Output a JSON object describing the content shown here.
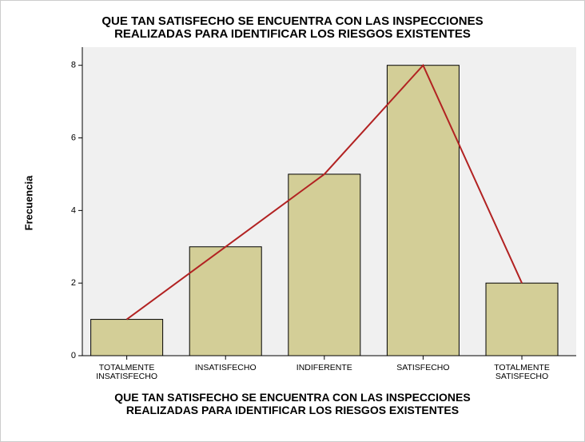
{
  "chart_data": {
    "type": "bar",
    "title": "QUE TAN SATISFECHO SE ENCUENTRA CON LAS INSPECCIONES\nREALIZADAS PARA IDENTIFICAR LOS RIESGOS EXISTENTES",
    "x_label": "QUE TAN SATISFECHO SE ENCUENTRA CON LAS INSPECCIONES\nREALIZADAS PARA IDENTIFICAR LOS RIESGOS EXISTENTES",
    "y_label": "Frecuencia",
    "categories": [
      "TOTALMENTE\nINSATISFECHO",
      "INSATISFECHO",
      "INDIFERENTE",
      "SATISFECHO",
      "TOTALMENTE\nSATISFECHO"
    ],
    "values": [
      1,
      3,
      5,
      8,
      2
    ],
    "color": "#d3ce97",
    "line_color": "#b22222",
    "ylim": [
      0,
      8.5
    ],
    "yticks": [
      0,
      2,
      4,
      6,
      8
    ]
  }
}
